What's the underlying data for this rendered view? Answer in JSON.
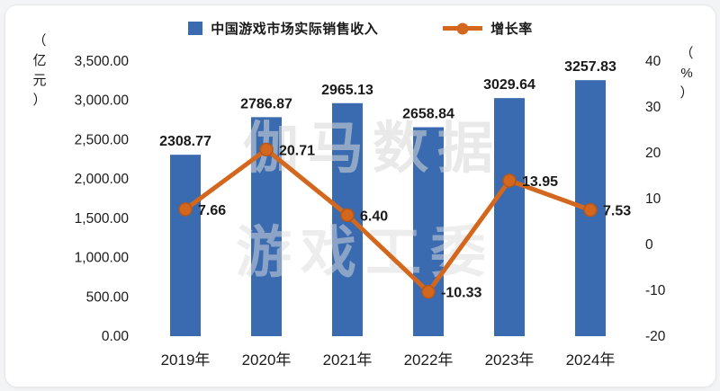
{
  "chart_data": {
    "type": "bar",
    "combo": "bar+line",
    "categories": [
      "2019年",
      "2020年",
      "2021年",
      "2022年",
      "2023年",
      "2024年"
    ],
    "series": [
      {
        "name": "中国游戏市场实际销售收入",
        "type": "bar",
        "axis": "left",
        "color": "#3a6bb0",
        "values": [
          2308.77,
          2786.87,
          2965.13,
          2658.84,
          3029.64,
          3257.83
        ],
        "labels": [
          "2308.77",
          "2786.87",
          "2965.13",
          "2658.84",
          "3029.64",
          "3257.83"
        ]
      },
      {
        "name": "增长率",
        "type": "line",
        "axis": "right",
        "color": "#d4671e",
        "marker_stroke": "#b4571c",
        "values": [
          7.66,
          20.71,
          6.4,
          -10.33,
          13.95,
          7.53
        ],
        "labels": [
          "7.66",
          "20.71",
          "6.40",
          "-10.33",
          "13.95",
          "7.53"
        ]
      }
    ],
    "left_axis": {
      "unit": "（亿元）",
      "min": 0,
      "max": 3500,
      "step": 500,
      "tick_labels": [
        "3,500.00",
        "3,000.00",
        "2,500.00",
        "2,000.00",
        "1,500.00",
        "1,000.00",
        "500.00",
        "0.00"
      ]
    },
    "right_axis": {
      "unit": "（%）",
      "min": -20,
      "max": 40,
      "step": 10,
      "tick_labels": [
        "40",
        "30",
        "20",
        "10",
        "0",
        "-10",
        "-20"
      ]
    },
    "legend_position": "top",
    "grid": false,
    "text_color": "#1a1a1a",
    "watermark": {
      "line1": "伽马数据",
      "line2": "游戏工委"
    }
  }
}
